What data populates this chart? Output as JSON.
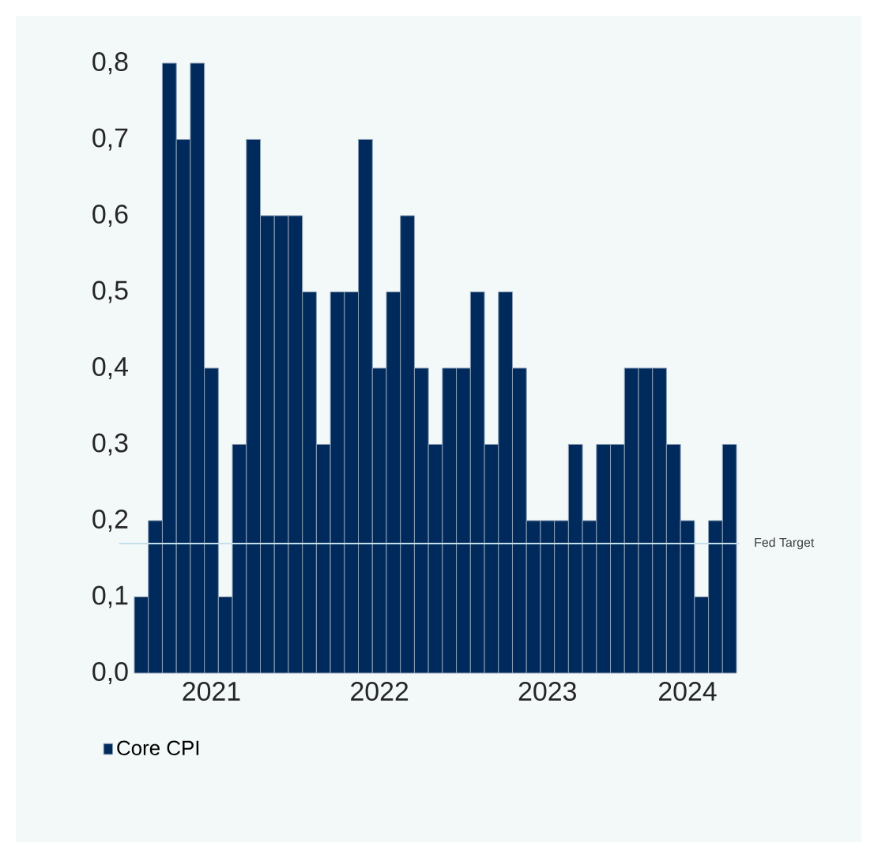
{
  "chart_data": {
    "type": "bar",
    "categories": [
      null,
      null,
      null,
      null,
      null,
      "2021",
      null,
      null,
      null,
      null,
      null,
      null,
      null,
      null,
      null,
      null,
      null,
      "2022",
      null,
      null,
      null,
      null,
      null,
      null,
      null,
      null,
      null,
      null,
      null,
      "2023",
      null,
      null,
      null,
      null,
      null,
      null,
      null,
      null,
      null,
      "2024",
      null,
      null,
      null
    ],
    "series": [
      {
        "name": "Core CPI",
        "color": "#002a5c",
        "values": [
          0.1,
          0.2,
          0.8,
          0.7,
          0.8,
          0.4,
          0.1,
          0.3,
          0.7,
          0.6,
          0.6,
          0.6,
          0.5,
          0.3,
          0.5,
          0.5,
          0.7,
          0.4,
          0.5,
          0.6,
          0.4,
          0.3,
          0.4,
          0.4,
          0.5,
          0.3,
          0.5,
          0.4,
          0.2,
          0.2,
          0.2,
          0.3,
          0.2,
          0.3,
          0.3,
          0.4,
          0.4,
          0.4,
          0.3,
          0.2,
          0.1,
          0.2,
          0.3
        ]
      }
    ],
    "ylim": [
      0,
      0.8
    ],
    "yticks": [
      {
        "value": 0,
        "label": "0,0"
      },
      {
        "value": 0.1,
        "label": "0,1"
      },
      {
        "value": 0.2,
        "label": "0,2"
      },
      {
        "value": 0.3,
        "label": "0,3"
      },
      {
        "value": 0.4,
        "label": "0,4"
      },
      {
        "value": 0.5,
        "label": "0,5"
      },
      {
        "value": 0.6,
        "label": "0,6"
      },
      {
        "value": 0.7,
        "label": "0,7"
      },
      {
        "value": 0.8,
        "label": "0,8"
      }
    ],
    "ref_lines": [
      {
        "axis": "y",
        "value": 0.17,
        "label": "Fed Target",
        "color": "#c5e0ea"
      }
    ],
    "legend": "bottom left",
    "grid": false
  }
}
